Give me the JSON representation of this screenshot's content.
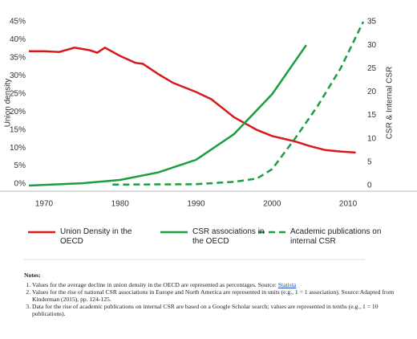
{
  "chart_data": {
    "type": "line",
    "y_label": "Union density",
    "y2_label": "CSR & Internal CSR",
    "xlim": [
      1968,
      2012
    ],
    "xticks": [
      1970,
      1980,
      1990,
      2000,
      2010
    ],
    "ylim": [
      0,
      45
    ],
    "yticks": [
      {
        "value": 0,
        "label": "0%"
      },
      {
        "value": 5,
        "label": "5%"
      },
      {
        "value": 10,
        "label": "10%"
      },
      {
        "value": 15,
        "label": "15%"
      },
      {
        "value": 20,
        "label": "20%"
      },
      {
        "value": 25,
        "label": "25%"
      },
      {
        "value": 30,
        "label": "30%"
      },
      {
        "value": 35,
        "label": "35%"
      },
      {
        "value": 40,
        "label": "40%"
      },
      {
        "value": 45,
        "label": "45%"
      }
    ],
    "y2lim": [
      0,
      35
    ],
    "y2ticks": [
      0,
      5,
      10,
      15,
      20,
      25,
      30,
      35
    ],
    "series": [
      {
        "name": "Union Density in the OECD",
        "color": "#d7191c",
        "dash": false,
        "x": [
          1968,
          1970,
          1972,
          1974,
          1976,
          1977,
          1978,
          1980,
          1982,
          1983,
          1985,
          1987,
          1990,
          1992,
          1995,
          1998,
          2000,
          2003,
          2005,
          2007,
          2009,
          2011
        ],
        "values": [
          36.8,
          36.8,
          36.6,
          37.8,
          37.1,
          36.4,
          37.8,
          35.5,
          33.6,
          33.3,
          30.5,
          28,
          25.5,
          23.5,
          18.5,
          15,
          13.3,
          11.8,
          10.5,
          9.4,
          9,
          8.7
        ]
      },
      {
        "name": "CSR associations in the OECD",
        "color": "#1a9e3f",
        "dash": false,
        "axis": "y2",
        "x": [
          1968,
          1975,
          1980,
          1985,
          1990,
          1995,
          2000,
          2004.5
        ],
        "values": [
          0,
          0.5,
          1.2,
          2.8,
          5.5,
          11,
          19.5,
          30
        ]
      },
      {
        "name": "Academic publications on internal CSR",
        "color": "#1a9e3f",
        "dash": true,
        "axis": "y2",
        "x": [
          1979,
          1990,
          1995,
          1998,
          2000,
          2003,
          2006,
          2009,
          2012
        ],
        "values": [
          0.2,
          0.3,
          0.8,
          1.5,
          3.5,
          10,
          17,
          25,
          35
        ]
      }
    ]
  },
  "notes": {
    "title": "Notes:",
    "items": [
      {
        "text": "Values for the average decline in union density in the OECD are represented as percentages. Source:",
        "link": "Statista"
      },
      {
        "text": "Values for the rise of national CSR associations in Europe and North America are represented in units (e.g., 1 = 1 association). Source:Adapted from Kinderman (2015), pp. 124-125."
      },
      {
        "text": "Data for the rise of academic publications on internal CSR are based on a Google Scholar search; values are represented in tenths (e.g., 1 = 10 publications)."
      }
    ]
  }
}
